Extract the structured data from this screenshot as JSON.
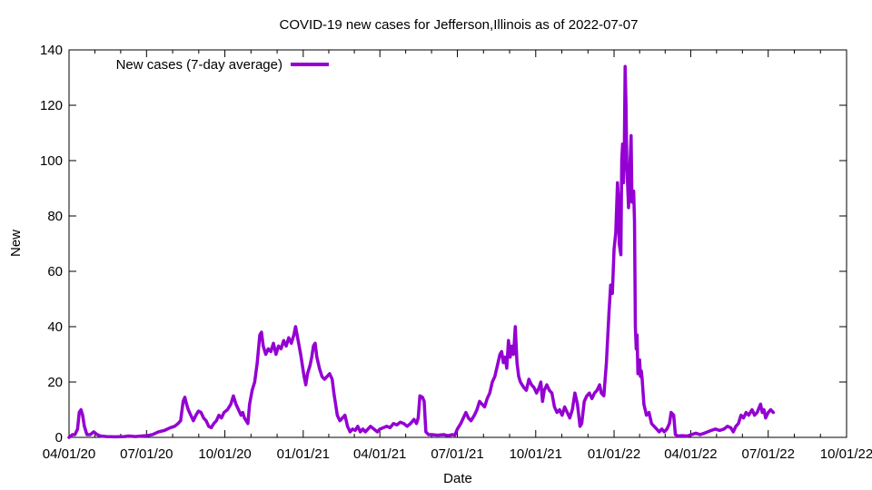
{
  "chart_data": {
    "type": "line",
    "title": "COVID-19 new cases for Jefferson,Illinois as of 2022-07-07",
    "xlabel": "Date",
    "ylabel": "New",
    "ylim": [
      0,
      140
    ],
    "yticks": [
      0,
      20,
      40,
      60,
      80,
      100,
      120,
      140
    ],
    "xlim": [
      "2020-04-01",
      "2022-10-01"
    ],
    "xticks": [
      {
        "date": "2020-04-01",
        "label": "04/01/20"
      },
      {
        "date": "2020-07-01",
        "label": "07/01/20"
      },
      {
        "date": "2020-10-01",
        "label": "10/01/20"
      },
      {
        "date": "2021-01-01",
        "label": "01/01/21"
      },
      {
        "date": "2021-04-01",
        "label": "04/01/21"
      },
      {
        "date": "2021-07-01",
        "label": "07/01/21"
      },
      {
        "date": "2021-10-01",
        "label": "10/01/21"
      },
      {
        "date": "2022-01-01",
        "label": "01/01/22"
      },
      {
        "date": "2022-04-01",
        "label": "04/01/22"
      },
      {
        "date": "2022-07-01",
        "label": "07/01/22"
      },
      {
        "date": "2022-10-01",
        "label": "10/01/22"
      }
    ],
    "legend_position": "top-left",
    "series": [
      {
        "name": "New cases (7-day average)",
        "color": "#9400d3",
        "points": [
          [
            "2020-04-01",
            0
          ],
          [
            "2020-04-05",
            1
          ],
          [
            "2020-04-08",
            1
          ],
          [
            "2020-04-11",
            3
          ],
          [
            "2020-04-13",
            9
          ],
          [
            "2020-04-15",
            10
          ],
          [
            "2020-04-17",
            8
          ],
          [
            "2020-04-19",
            4
          ],
          [
            "2020-04-22",
            1
          ],
          [
            "2020-04-26",
            1
          ],
          [
            "2020-04-30",
            2
          ],
          [
            "2020-05-04",
            1
          ],
          [
            "2020-05-08",
            0.5
          ],
          [
            "2020-05-15",
            0.3
          ],
          [
            "2020-05-25",
            0.2
          ],
          [
            "2020-06-05",
            0.3
          ],
          [
            "2020-06-10",
            0.5
          ],
          [
            "2020-06-18",
            0.3
          ],
          [
            "2020-06-25",
            0.5
          ],
          [
            "2020-07-01",
            0.6
          ],
          [
            "2020-07-08",
            1
          ],
          [
            "2020-07-15",
            2
          ],
          [
            "2020-07-22",
            2.5
          ],
          [
            "2020-07-29",
            3.5
          ],
          [
            "2020-08-03",
            4
          ],
          [
            "2020-08-07",
            5
          ],
          [
            "2020-08-10",
            6
          ],
          [
            "2020-08-13",
            13
          ],
          [
            "2020-08-15",
            14.5
          ],
          [
            "2020-08-17",
            12
          ],
          [
            "2020-08-19",
            10
          ],
          [
            "2020-08-22",
            8
          ],
          [
            "2020-08-25",
            6
          ],
          [
            "2020-08-28",
            8
          ],
          [
            "2020-08-31",
            9.5
          ],
          [
            "2020-09-03",
            9
          ],
          [
            "2020-09-06",
            7
          ],
          [
            "2020-09-09",
            6
          ],
          [
            "2020-09-12",
            4
          ],
          [
            "2020-09-15",
            3.5
          ],
          [
            "2020-09-18",
            5
          ],
          [
            "2020-09-21",
            6
          ],
          [
            "2020-09-24",
            8
          ],
          [
            "2020-09-27",
            7
          ],
          [
            "2020-09-30",
            9
          ],
          [
            "2020-10-04",
            10
          ],
          [
            "2020-10-08",
            12
          ],
          [
            "2020-10-11",
            15
          ],
          [
            "2020-10-14",
            12
          ],
          [
            "2020-10-17",
            10
          ],
          [
            "2020-10-20",
            8
          ],
          [
            "2020-10-22",
            9
          ],
          [
            "2020-10-24",
            7
          ],
          [
            "2020-10-26",
            6
          ],
          [
            "2020-10-28",
            5
          ],
          [
            "2020-10-30",
            12
          ],
          [
            "2020-11-02",
            17
          ],
          [
            "2020-11-05",
            20
          ],
          [
            "2020-11-08",
            27
          ],
          [
            "2020-11-11",
            37
          ],
          [
            "2020-11-13",
            38
          ],
          [
            "2020-11-15",
            33
          ],
          [
            "2020-11-18",
            30
          ],
          [
            "2020-11-21",
            32
          ],
          [
            "2020-11-24",
            31
          ],
          [
            "2020-11-27",
            34
          ],
          [
            "2020-11-30",
            30
          ],
          [
            "2020-12-03",
            33
          ],
          [
            "2020-12-06",
            32
          ],
          [
            "2020-12-09",
            35
          ],
          [
            "2020-12-12",
            33
          ],
          [
            "2020-12-15",
            36
          ],
          [
            "2020-12-18",
            34
          ],
          [
            "2020-12-21",
            37
          ],
          [
            "2020-12-23",
            40
          ],
          [
            "2020-12-26",
            35
          ],
          [
            "2020-12-29",
            30
          ],
          [
            "2020-12-31",
            26
          ],
          [
            "2021-01-02",
            22
          ],
          [
            "2021-01-04",
            19
          ],
          [
            "2021-01-06",
            23
          ],
          [
            "2021-01-09",
            26
          ],
          [
            "2021-01-11",
            29
          ],
          [
            "2021-01-13",
            33
          ],
          [
            "2021-01-15",
            34
          ],
          [
            "2021-01-17",
            29
          ],
          [
            "2021-01-20",
            25
          ],
          [
            "2021-01-23",
            22
          ],
          [
            "2021-01-26",
            21
          ],
          [
            "2021-01-29",
            22
          ],
          [
            "2021-02-01",
            23
          ],
          [
            "2021-02-04",
            21
          ],
          [
            "2021-02-06",
            16
          ],
          [
            "2021-02-08",
            12
          ],
          [
            "2021-02-10",
            8
          ],
          [
            "2021-02-13",
            6
          ],
          [
            "2021-02-16",
            7
          ],
          [
            "2021-02-19",
            8
          ],
          [
            "2021-02-22",
            4
          ],
          [
            "2021-02-25",
            2
          ],
          [
            "2021-02-28",
            3
          ],
          [
            "2021-03-03",
            2.5
          ],
          [
            "2021-03-06",
            4
          ],
          [
            "2021-03-09",
            2
          ],
          [
            "2021-03-12",
            3
          ],
          [
            "2021-03-15",
            2
          ],
          [
            "2021-03-18",
            3
          ],
          [
            "2021-03-21",
            4
          ],
          [
            "2021-03-25",
            3
          ],
          [
            "2021-03-29",
            2
          ],
          [
            "2021-04-01",
            3
          ],
          [
            "2021-04-05",
            3.5
          ],
          [
            "2021-04-09",
            4
          ],
          [
            "2021-04-13",
            3.5
          ],
          [
            "2021-04-17",
            5
          ],
          [
            "2021-04-21",
            4.5
          ],
          [
            "2021-04-25",
            5.5
          ],
          [
            "2021-04-29",
            5
          ],
          [
            "2021-05-03",
            4
          ],
          [
            "2021-05-07",
            5
          ],
          [
            "2021-05-11",
            6.5
          ],
          [
            "2021-05-14",
            5
          ],
          [
            "2021-05-16",
            7
          ],
          [
            "2021-05-18",
            15
          ],
          [
            "2021-05-21",
            14.5
          ],
          [
            "2021-05-23",
            13
          ],
          [
            "2021-05-25",
            2
          ],
          [
            "2021-05-28",
            1
          ],
          [
            "2021-06-01",
            1
          ],
          [
            "2021-06-08",
            0.8
          ],
          [
            "2021-06-15",
            1
          ],
          [
            "2021-06-20",
            0.6
          ],
          [
            "2021-06-25",
            1
          ],
          [
            "2021-06-28",
            0.8
          ],
          [
            "2021-07-01",
            3
          ],
          [
            "2021-07-05",
            5
          ],
          [
            "2021-07-08",
            7
          ],
          [
            "2021-07-11",
            9
          ],
          [
            "2021-07-14",
            7
          ],
          [
            "2021-07-17",
            6
          ],
          [
            "2021-07-21",
            8
          ],
          [
            "2021-07-24",
            10
          ],
          [
            "2021-07-27",
            13
          ],
          [
            "2021-07-30",
            12
          ],
          [
            "2021-08-02",
            11
          ],
          [
            "2021-08-05",
            14
          ],
          [
            "2021-08-08",
            16
          ],
          [
            "2021-08-11",
            20
          ],
          [
            "2021-08-14",
            22
          ],
          [
            "2021-08-17",
            26
          ],
          [
            "2021-08-20",
            30
          ],
          [
            "2021-08-22",
            31
          ],
          [
            "2021-08-24",
            27
          ],
          [
            "2021-08-26",
            29
          ],
          [
            "2021-08-28",
            25
          ],
          [
            "2021-08-30",
            35
          ],
          [
            "2021-09-01",
            29
          ],
          [
            "2021-09-03",
            33
          ],
          [
            "2021-09-05",
            30
          ],
          [
            "2021-09-07",
            40
          ],
          [
            "2021-09-09",
            27
          ],
          [
            "2021-09-11",
            22
          ],
          [
            "2021-09-13",
            20
          ],
          [
            "2021-09-15",
            19
          ],
          [
            "2021-09-17",
            18
          ],
          [
            "2021-09-20",
            17
          ],
          [
            "2021-09-23",
            21
          ],
          [
            "2021-09-26",
            19
          ],
          [
            "2021-09-29",
            18
          ],
          [
            "2021-10-02",
            16
          ],
          [
            "2021-10-05",
            18
          ],
          [
            "2021-10-07",
            20
          ],
          [
            "2021-10-09",
            13
          ],
          [
            "2021-10-11",
            17
          ],
          [
            "2021-10-14",
            19
          ],
          [
            "2021-10-17",
            17
          ],
          [
            "2021-10-20",
            16
          ],
          [
            "2021-10-23",
            11
          ],
          [
            "2021-10-26",
            9
          ],
          [
            "2021-10-29",
            10
          ],
          [
            "2021-11-01",
            8
          ],
          [
            "2021-11-04",
            11
          ],
          [
            "2021-11-07",
            9
          ],
          [
            "2021-11-10",
            7
          ],
          [
            "2021-11-13",
            10
          ],
          [
            "2021-11-16",
            16
          ],
          [
            "2021-11-19",
            12
          ],
          [
            "2021-11-22",
            4
          ],
          [
            "2021-11-24",
            5
          ],
          [
            "2021-11-27",
            13
          ],
          [
            "2021-11-30",
            15
          ],
          [
            "2021-12-03",
            16
          ],
          [
            "2021-12-06",
            14
          ],
          [
            "2021-12-09",
            16
          ],
          [
            "2021-12-12",
            17
          ],
          [
            "2021-12-15",
            19
          ],
          [
            "2021-12-17",
            16
          ],
          [
            "2021-12-20",
            15
          ],
          [
            "2021-12-23",
            27
          ],
          [
            "2021-12-26",
            45
          ],
          [
            "2021-12-28",
            55
          ],
          [
            "2021-12-30",
            52
          ],
          [
            "2022-01-01",
            68
          ],
          [
            "2022-01-03",
            74
          ],
          [
            "2022-01-05",
            92
          ],
          [
            "2022-01-06",
            87
          ],
          [
            "2022-01-07",
            70
          ],
          [
            "2022-01-09",
            66
          ],
          [
            "2022-01-10",
            100
          ],
          [
            "2022-01-11",
            106
          ],
          [
            "2022-01-12",
            92
          ],
          [
            "2022-01-13",
            103
          ],
          [
            "2022-01-14",
            134
          ],
          [
            "2022-01-15",
            120
          ],
          [
            "2022-01-16",
            98
          ],
          [
            "2022-01-18",
            83
          ],
          [
            "2022-01-19",
            93
          ],
          [
            "2022-01-21",
            109
          ],
          [
            "2022-01-22",
            85
          ],
          [
            "2022-01-24",
            89
          ],
          [
            "2022-01-25",
            78
          ],
          [
            "2022-01-26",
            40
          ],
          [
            "2022-01-27",
            32
          ],
          [
            "2022-01-28",
            37
          ],
          [
            "2022-01-29",
            23
          ],
          [
            "2022-01-30",
            26
          ],
          [
            "2022-01-31",
            28
          ],
          [
            "2022-02-01",
            22
          ],
          [
            "2022-02-02",
            24
          ],
          [
            "2022-02-03",
            21
          ],
          [
            "2022-02-05",
            12
          ],
          [
            "2022-02-08",
            8
          ],
          [
            "2022-02-11",
            9
          ],
          [
            "2022-02-14",
            5
          ],
          [
            "2022-02-17",
            4
          ],
          [
            "2022-02-20",
            3
          ],
          [
            "2022-02-23",
            2
          ],
          [
            "2022-02-26",
            3
          ],
          [
            "2022-03-01",
            2
          ],
          [
            "2022-03-04",
            3
          ],
          [
            "2022-03-07",
            5
          ],
          [
            "2022-03-09",
            9
          ],
          [
            "2022-03-12",
            8
          ],
          [
            "2022-03-14",
            1
          ],
          [
            "2022-03-17",
            0.5
          ],
          [
            "2022-03-22",
            0.6
          ],
          [
            "2022-03-28",
            0.5
          ],
          [
            "2022-04-02",
            1
          ],
          [
            "2022-04-07",
            1.5
          ],
          [
            "2022-04-12",
            1
          ],
          [
            "2022-04-17",
            1.5
          ],
          [
            "2022-04-21",
            2
          ],
          [
            "2022-04-25",
            2.5
          ],
          [
            "2022-04-30",
            3
          ],
          [
            "2022-05-05",
            2.5
          ],
          [
            "2022-05-10",
            3
          ],
          [
            "2022-05-14",
            4
          ],
          [
            "2022-05-18",
            3.5
          ],
          [
            "2022-05-21",
            2
          ],
          [
            "2022-05-24",
            4
          ],
          [
            "2022-05-27",
            5
          ],
          [
            "2022-05-30",
            8
          ],
          [
            "2022-06-02",
            7
          ],
          [
            "2022-06-05",
            9
          ],
          [
            "2022-06-08",
            8
          ],
          [
            "2022-06-12",
            10
          ],
          [
            "2022-06-15",
            8
          ],
          [
            "2022-06-18",
            9
          ],
          [
            "2022-06-22",
            12
          ],
          [
            "2022-06-24",
            9
          ],
          [
            "2022-06-26",
            10
          ],
          [
            "2022-06-28",
            7
          ],
          [
            "2022-07-01",
            9
          ],
          [
            "2022-07-04",
            10
          ],
          [
            "2022-07-07",
            9
          ]
        ]
      }
    ]
  }
}
